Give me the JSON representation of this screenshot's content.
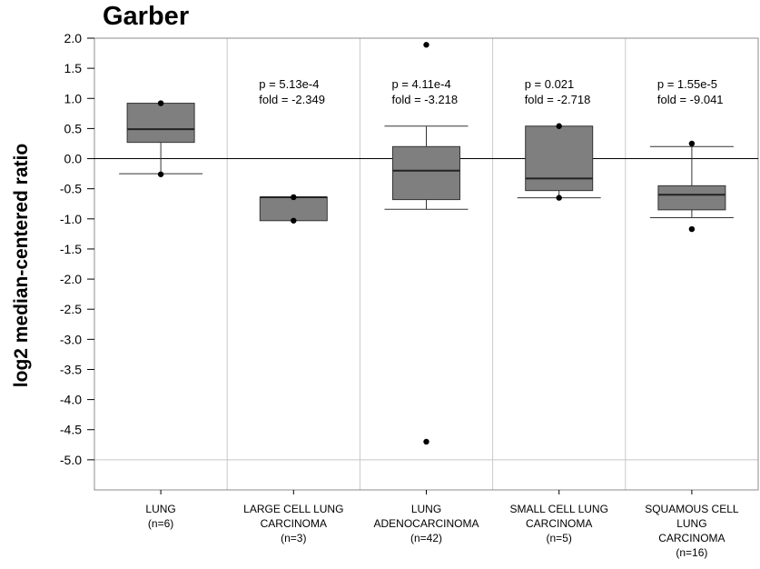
{
  "chart_data": {
    "type": "boxplot",
    "title": "Garber",
    "xlabel": "",
    "ylabel": "log2 median-centered ratio",
    "ylim": [
      -5.5,
      2.0
    ],
    "yticks": [
      "2.0",
      "1.5",
      "1.0",
      "0.5",
      "0.0",
      "-0.5",
      "-1.0",
      "-1.5",
      "-2.0",
      "-2.5",
      "-3.0",
      "-3.5",
      "-4.0",
      "-4.5",
      "-5.0"
    ],
    "reference_line": 0.0,
    "categories": [
      {
        "label_lines": [
          "LUNG",
          "(n=6)"
        ]
      },
      {
        "label_lines": [
          "LARGE CELL LUNG",
          "CARCINOMA",
          "(n=3)"
        ]
      },
      {
        "label_lines": [
          "LUNG",
          "ADENOCARCINOMA",
          "(n=42)"
        ]
      },
      {
        "label_lines": [
          "SMALL CELL LUNG",
          "CARCINOMA",
          "(n=5)"
        ]
      },
      {
        "label_lines": [
          "SQUAMOUS CELL",
          "LUNG",
          "CARCINOMA",
          "(n=16)"
        ]
      }
    ],
    "boxes": [
      {
        "whisker_low": -0.25,
        "q1": 0.27,
        "median": 0.49,
        "q3": 0.92,
        "whisker_high": 0.92,
        "outliers": [
          0.92,
          -0.26
        ],
        "stats": null
      },
      {
        "whisker_low": -1.03,
        "q1": -1.03,
        "median": -0.64,
        "q3": -0.64,
        "whisker_high": -0.64,
        "outliers": [
          -0.64,
          -1.03
        ],
        "stats": [
          "p = 5.13e-4",
          "fold = -2.349"
        ]
      },
      {
        "whisker_low": -0.84,
        "q1": -0.68,
        "median": -0.2,
        "q3": 0.2,
        "whisker_high": 0.54,
        "outliers": [
          1.89,
          -4.7
        ],
        "stats": [
          "p = 4.11e-4",
          "fold = -3.218"
        ]
      },
      {
        "whisker_low": -0.65,
        "q1": -0.53,
        "median": -0.33,
        "q3": 0.54,
        "whisker_high": 0.54,
        "outliers": [
          0.54,
          -0.65
        ],
        "stats": [
          "p = 0.021",
          "fold = -2.718"
        ]
      },
      {
        "whisker_low": -0.98,
        "q1": -0.85,
        "median": -0.6,
        "q3": -0.45,
        "whisker_high": 0.2,
        "outliers": [
          0.25,
          -1.17
        ],
        "stats": [
          "p = 1.55e-5",
          "fold = -9.041"
        ]
      }
    ],
    "grid": true,
    "colors": {
      "box": "#7f7f7f",
      "grid": "#c8c8c8",
      "axis": "#000000"
    }
  }
}
